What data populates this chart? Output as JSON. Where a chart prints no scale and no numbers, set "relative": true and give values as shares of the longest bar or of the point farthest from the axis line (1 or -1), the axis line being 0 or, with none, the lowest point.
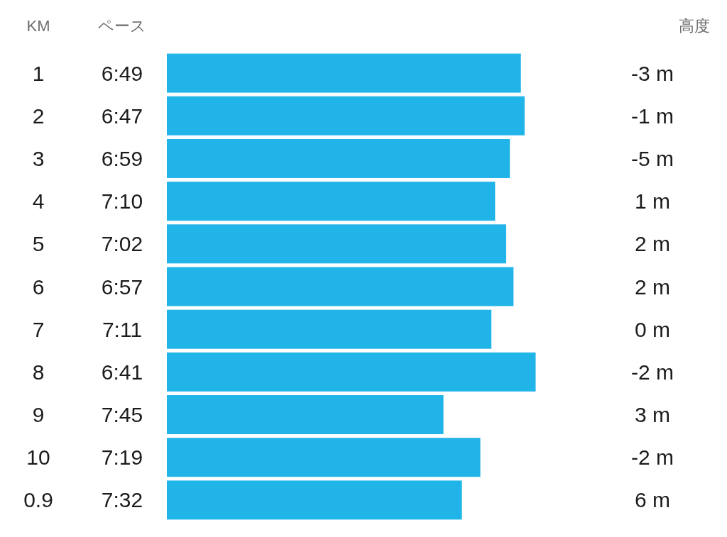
{
  "chart_data": {
    "type": "bar",
    "orientation": "horizontal",
    "relative": true,
    "ylabel": "KM",
    "xlabel": "ペース",
    "categories": [
      "1",
      "2",
      "3",
      "4",
      "5",
      "6",
      "7",
      "8",
      "9",
      "10",
      "0.9"
    ],
    "values": [
      0.96,
      0.97,
      0.93,
      0.89,
      0.92,
      0.94,
      0.88,
      1,
      0.75,
      0.85,
      0.8
    ],
    "y2_categories": [
      "-3 m",
      "-1 m",
      "-5 m",
      "1 m",
      "2 m",
      "2 m",
      "0 m",
      "-2 m",
      "3 m",
      "-2 m",
      "6 m"
    ],
    "annotations": [
      "6:49",
      "6:47",
      "6:59",
      "7:10",
      "7:02",
      "6:57",
      "7:11",
      "6:41",
      "7:45",
      "7:19",
      "7:32",
      "高度"
    ],
    "color": "#21b4e9",
    "tick_labels": "y"
  }
}
